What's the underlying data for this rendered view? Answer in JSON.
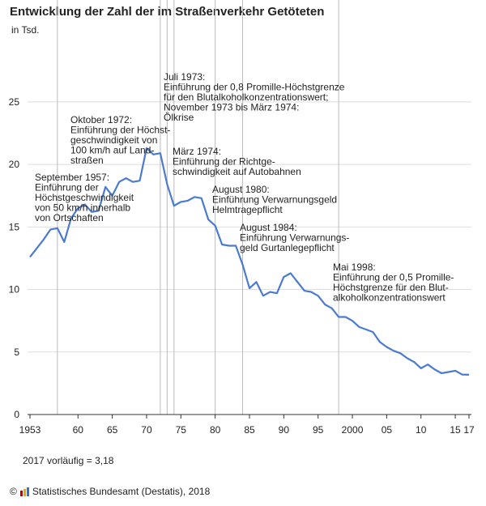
{
  "header": {
    "title": "Entwicklung der Zahl der im Straßenverkehr Getöteten",
    "subtitle": "in Tsd."
  },
  "note": "2017 vorläufig = 3,18",
  "footer": {
    "copyright": "©",
    "source": "Statistisches Bundesamt (Destatis), 2018",
    "logo_colors": [
      "#c00000",
      "#e8a317",
      "#3a6fc4"
    ]
  },
  "colors": {
    "line": "#4a7bd0",
    "grid": "#dddddd",
    "axis": "#333333",
    "marker": "#bbbbbb"
  },
  "chart_data": {
    "type": "line",
    "title": "Entwicklung der Zahl der im Straßenverkehr Getöteten",
    "subtitle": "in Tsd.",
    "ylim": [
      0,
      27
    ],
    "yticks": [
      0,
      5,
      10,
      15,
      20,
      25
    ],
    "xlim": [
      1953,
      2017
    ],
    "xticks": [
      {
        "year": 1953,
        "label": "1953"
      },
      {
        "year": 1960,
        "label": "60"
      },
      {
        "year": 1965,
        "label": "65"
      },
      {
        "year": 1970,
        "label": "70"
      },
      {
        "year": 1975,
        "label": "75"
      },
      {
        "year": 1980,
        "label": "80"
      },
      {
        "year": 1985,
        "label": "85"
      },
      {
        "year": 1990,
        "label": "90"
      },
      {
        "year": 1995,
        "label": "95"
      },
      {
        "year": 2000,
        "label": "2000"
      },
      {
        "year": 2005,
        "label": "05"
      },
      {
        "year": 2010,
        "label": "10"
      },
      {
        "year": 2015,
        "label": "15"
      },
      {
        "year": 2017,
        "label": "17"
      }
    ],
    "grid": true,
    "x": [
      1953,
      1954,
      1955,
      1956,
      1957,
      1958,
      1959,
      1960,
      1961,
      1962,
      1963,
      1964,
      1965,
      1966,
      1967,
      1968,
      1969,
      1970,
      1971,
      1972,
      1973,
      1974,
      1975,
      1976,
      1977,
      1978,
      1979,
      1980,
      1981,
      1982,
      1983,
      1984,
      1985,
      1986,
      1987,
      1988,
      1989,
      1990,
      1991,
      1992,
      1993,
      1994,
      1995,
      1996,
      1997,
      1998,
      1999,
      2000,
      2001,
      2002,
      2003,
      2004,
      2005,
      2006,
      2007,
      2008,
      2009,
      2010,
      2011,
      2012,
      2013,
      2014,
      2015,
      2016,
      2017
    ],
    "y": [
      12.6,
      13.3,
      14.0,
      14.8,
      14.9,
      13.8,
      15.7,
      16.5,
      16.8,
      16.2,
      16.3,
      18.2,
      17.5,
      18.6,
      18.9,
      18.6,
      18.7,
      21.3,
      20.8,
      20.9,
      18.4,
      16.7,
      17.0,
      17.1,
      17.4,
      17.3,
      15.6,
      15.1,
      13.6,
      13.5,
      13.5,
      12.0,
      10.1,
      10.6,
      9.5,
      9.8,
      9.7,
      11.0,
      11.3,
      10.6,
      9.9,
      9.8,
      9.5,
      8.8,
      8.5,
      7.8,
      7.8,
      7.5,
      7.0,
      6.8,
      6.6,
      5.8,
      5.4,
      5.1,
      4.9,
      4.5,
      4.2,
      3.7,
      4.0,
      3.6,
      3.3,
      3.4,
      3.5,
      3.2,
      3.18
    ],
    "annotations": [
      {
        "year": 1957,
        "lines": [
          "September 1957:",
          "Einführung der",
          "Höchstgeschwindigkeit",
          "von 50 km/h innerhalb",
          "von Ortschaften"
        ]
      },
      {
        "year": 1972,
        "lines": [
          "Oktober 1972:",
          "Einführung der Höchst-",
          "geschwindigkeit von",
          "100 km/h auf Land-",
          "straßen"
        ]
      },
      {
        "year": 1973,
        "lines": [
          "Juli 1973:",
          "Einführung der 0,8 Promille-Höchstgrenze",
          "für den Blutalkoholkonzentrationswert;",
          "November 1973 bis März 1974:",
          "Ölkrise"
        ]
      },
      {
        "year": 1974,
        "lines": [
          "März 1974:",
          "Einführung der Richtge-",
          "schwindigkeit auf Autobahnen"
        ]
      },
      {
        "year": 1980,
        "lines": [
          "August 1980:",
          "Einführung Verwarnungsgeld",
          "Helmtragepflicht"
        ]
      },
      {
        "year": 1984,
        "lines": [
          "August 1984:",
          "Einführung Verwarnungs-",
          "geld Gurtanlegepflicht"
        ]
      },
      {
        "year": 1998,
        "lines": [
          "Mai 1998:",
          "Einführung der 0,5 Promille-",
          "Höchstgrenze für den Blut-",
          "alkoholkonzentrationswert"
        ]
      }
    ]
  }
}
